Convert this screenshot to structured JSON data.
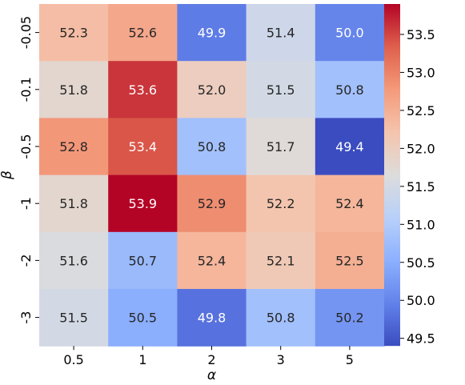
{
  "chart_data": {
    "type": "heatmap",
    "x_categories": [
      "0.5",
      "1",
      "2",
      "3",
      "5"
    ],
    "y_categories": [
      "-0.05",
      "-0.1",
      "-0.5",
      "-1",
      "-2",
      "-3"
    ],
    "xlabel": "α",
    "ylabel": "β",
    "values": [
      [
        52.3,
        52.6,
        49.9,
        51.4,
        50.0
      ],
      [
        51.8,
        53.6,
        52.0,
        51.5,
        50.8
      ],
      [
        52.8,
        53.4,
        50.8,
        51.7,
        49.4
      ],
      [
        51.8,
        53.9,
        52.9,
        52.2,
        52.4
      ],
      [
        51.6,
        50.7,
        52.4,
        52.1,
        52.5
      ],
      [
        51.5,
        50.5,
        49.8,
        50.8,
        50.2
      ]
    ],
    "value_labels": [
      [
        "52.3",
        "52.6",
        "49.9",
        "51.4",
        "50.0"
      ],
      [
        "51.8",
        "53.6",
        "52.0",
        "51.5",
        "50.8"
      ],
      [
        "52.8",
        "53.4",
        "50.8",
        "51.7",
        "49.4"
      ],
      [
        "51.8",
        "53.9",
        "52.9",
        "52.2",
        "52.4"
      ],
      [
        "51.6",
        "50.7",
        "52.4",
        "52.1",
        "52.5"
      ],
      [
        "51.5",
        "50.5",
        "49.8",
        "50.8",
        "50.2"
      ]
    ],
    "colormap": "coolwarm",
    "vmin": 49.4,
    "vmax": 53.9,
    "colorbar_ticks": [
      "49.5",
      "50.0",
      "50.5",
      "51.0",
      "51.5",
      "52.0",
      "52.5",
      "53.0",
      "53.5"
    ],
    "legend": "colorbar-right"
  }
}
